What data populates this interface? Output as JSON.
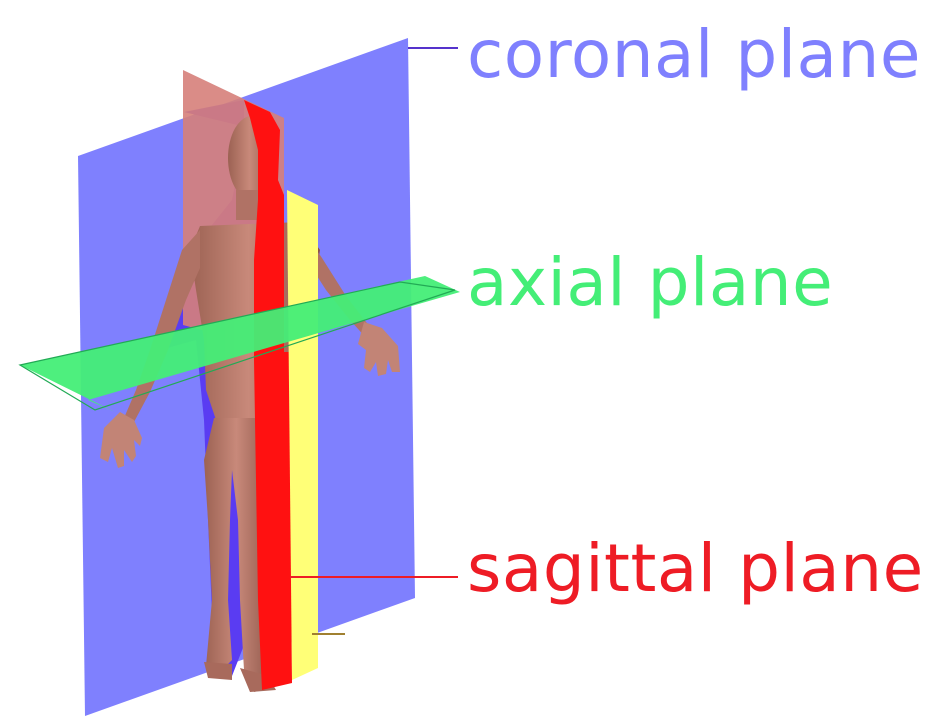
{
  "labels": {
    "coronal": "coronal plane",
    "axial": "axial plane",
    "sagittal": "sagittal plane"
  },
  "colors": {
    "coronal_plane": "#7f80fe",
    "coronal_text": "#7f80fe",
    "axial_plane": "#44ee77",
    "axial_text": "#44ee77",
    "sagittal_plane": "#ff1111",
    "sagittal_text": "#ee1c25",
    "sagittal_back": "#d6807a",
    "yellow_strip": "#ffff77",
    "skin": "#b8786a",
    "skin_dark": "#8a5346",
    "leader_coronal": "#5533cc",
    "leader_sagittal": "#ee1c25"
  }
}
